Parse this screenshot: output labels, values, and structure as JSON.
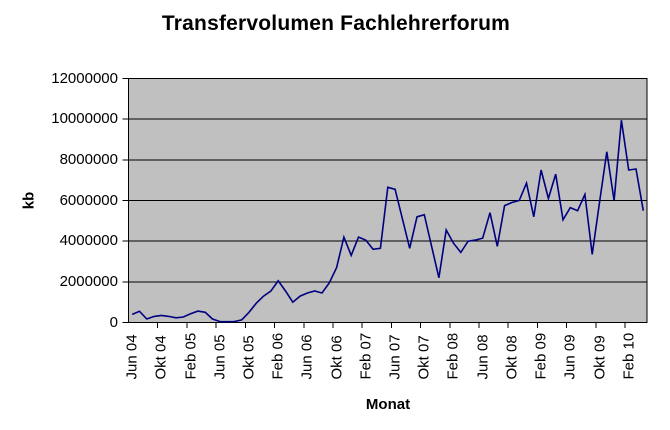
{
  "chart_data": {
    "type": "line",
    "title": "Transfervolumen Fachlehrerforum",
    "xlabel": "Monat",
    "ylabel": "kb",
    "ylim": [
      0,
      12000000
    ],
    "y_tick_step": 2000000,
    "y_tick_labels": [
      "12000000",
      "10000000",
      "8000000",
      "6000000",
      "4000000",
      "2000000",
      "0"
    ],
    "x_tick_labels": [
      "Jun 04",
      "Okt 04",
      "Feb 05",
      "Jun 05",
      "Okt 05",
      "Feb 06",
      "Jun 06",
      "Okt 06",
      "Feb 07",
      "Jun 07",
      "Okt 07",
      "Feb 08",
      "Jun 08",
      "Okt 08",
      "Feb 09",
      "Jun 09",
      "Okt 09",
      "Feb 10"
    ],
    "x_tick_every": 4,
    "grid": "horizontal-major",
    "legend": "none",
    "line_color": "#000080",
    "plot_bg": "#c0c0c0",
    "axis_color": "#000000",
    "categories": [
      "Jun 04",
      "Jul 04",
      "Aug 04",
      "Sep 04",
      "Okt 04",
      "Nov 04",
      "Dez 04",
      "Jan 05",
      "Feb 05",
      "Mär 05",
      "Apr 05",
      "Mai 05",
      "Jun 05",
      "Jul 05",
      "Aug 05",
      "Sep 05",
      "Okt 05",
      "Nov 05",
      "Dez 05",
      "Jan 06",
      "Feb 06",
      "Mär 06",
      "Apr 06",
      "Mai 06",
      "Jun 06",
      "Jul 06",
      "Aug 06",
      "Sep 06",
      "Okt 06",
      "Nov 06",
      "Dez 06",
      "Jan 07",
      "Feb 07",
      "Mär 07",
      "Apr 07",
      "Mai 07",
      "Jun 07",
      "Jul 07",
      "Aug 07",
      "Sep 07",
      "Okt 07",
      "Nov 07",
      "Dez 07",
      "Jan 08",
      "Feb 08",
      "Mär 08",
      "Apr 08",
      "Mai 08",
      "Jun 08",
      "Jul 08",
      "Aug 08",
      "Sep 08",
      "Okt 08",
      "Nov 08",
      "Dez 08",
      "Jan 09",
      "Feb 09",
      "Mär 09",
      "Apr 09",
      "Mai 09",
      "Jun 09",
      "Jul 09",
      "Aug 09",
      "Sep 09",
      "Okt 09",
      "Nov 09",
      "Dez 09",
      "Jan 10",
      "Feb 10",
      "Mär 10",
      "Apr 10"
    ],
    "values": [
      400000,
      550000,
      170000,
      300000,
      350000,
      300000,
      230000,
      270000,
      430000,
      560000,
      500000,
      170000,
      50000,
      40000,
      50000,
      130000,
      500000,
      950000,
      1300000,
      1550000,
      2050000,
      1550000,
      1000000,
      1300000,
      1450000,
      1550000,
      1450000,
      1950000,
      2700000,
      4200000,
      3300000,
      4200000,
      4050000,
      3600000,
      3650000,
      6650000,
      6550000,
      5100000,
      3650000,
      5200000,
      5300000,
      3750000,
      2200000,
      4550000,
      3900000,
      3450000,
      4000000,
      4050000,
      4150000,
      5400000,
      3750000,
      5750000,
      5900000,
      6000000,
      6850000,
      5200000,
      7500000,
      6100000,
      7300000,
      5050000,
      5650000,
      5500000,
      6300000,
      3350000,
      5900000,
      8400000,
      6000000,
      9950000,
      7500000,
      7550000,
      5500000
    ]
  }
}
